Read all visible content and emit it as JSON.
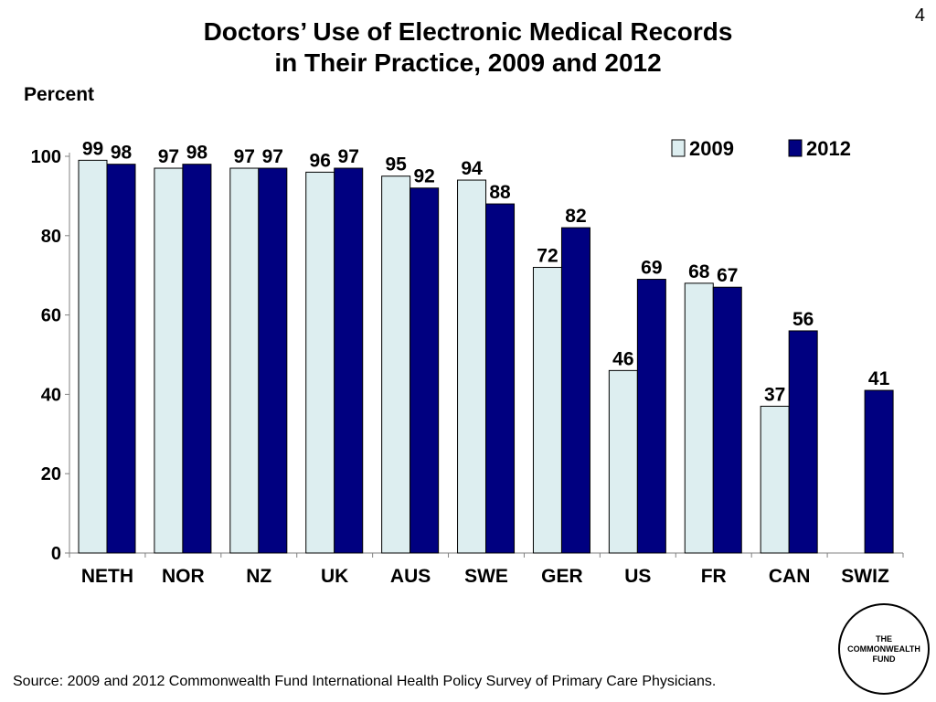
{
  "page_number": "4",
  "title_lines": [
    "Doctors’ Use of Electronic Medical Records",
    "in Their Practice, 2009 and 2012"
  ],
  "y_unit_label": "Percent",
  "source": "Source: 2009 and 2012 Commonwealth Fund International Health Policy Survey of Primary Care Physicians.",
  "logo_lines": [
    "THE",
    "COMMONWEALTH",
    "FUND"
  ],
  "colors": {
    "series_2009": "#ddeef0",
    "series_2012": "#000080",
    "axis": "#808080"
  },
  "chart_data": {
    "type": "bar",
    "title": "Doctors’ Use of Electronic Medical Records in Their Practice, 2009 and 2012",
    "ylabel": "Percent",
    "xlabel": "",
    "ylim": [
      0,
      100
    ],
    "yticks": [
      0,
      20,
      40,
      60,
      80,
      100
    ],
    "categories": [
      "NETH",
      "NOR",
      "NZ",
      "UK",
      "AUS",
      "SWE",
      "GER",
      "US",
      "FR",
      "CAN",
      "SWIZ"
    ],
    "series": [
      {
        "name": "2009",
        "values": [
          99,
          97,
          97,
          96,
          95,
          94,
          72,
          46,
          68,
          37,
          null
        ]
      },
      {
        "name": "2012",
        "values": [
          98,
          98,
          97,
          97,
          92,
          88,
          82,
          69,
          67,
          56,
          41
        ]
      }
    ],
    "legend": "top-right",
    "grid": false
  }
}
